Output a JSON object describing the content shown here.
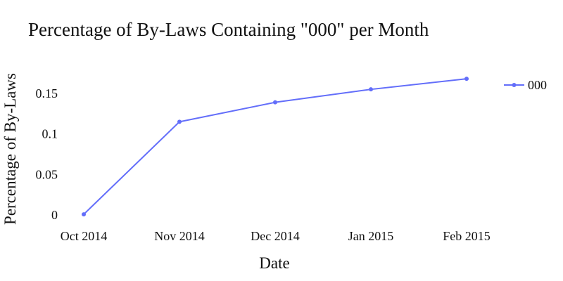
{
  "chart_data": {
    "type": "line",
    "title": "Percentage of By-Laws Containing \"000\" per Month",
    "xlabel": "Date",
    "ylabel": "Percentage of By-Laws",
    "categories": [
      "Oct 2014",
      "Nov 2014",
      "Dec 2014",
      "Jan 2015",
      "Feb 2015"
    ],
    "series": [
      {
        "name": "000",
        "values": [
          0.001,
          0.115,
          0.139,
          0.155,
          0.168
        ],
        "color": "#636EFA"
      }
    ],
    "y_ticks": [
      0,
      0.05,
      0.1,
      0.15
    ],
    "y_tick_labels": [
      "0",
      "0.05",
      "0.1",
      "0.15"
    ],
    "ylim": [
      -0.005,
      0.182
    ],
    "grid": false,
    "legend_position": "right"
  }
}
